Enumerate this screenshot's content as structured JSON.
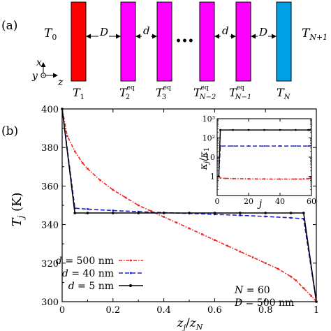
{
  "panel_a": {
    "label": "(a)",
    "t0_label": "T",
    "t0_sub": "0",
    "tn1_label": "T",
    "tn1_sub": "N+1",
    "gap_D": "D",
    "gap_d": "d",
    "dots": "•••",
    "axis_x": "x",
    "axis_y": "y",
    "axis_z": "z",
    "colors": {
      "first": "#ff0000",
      "middle": "#ff00ff",
      "last": "#00a0e6"
    },
    "slabs": [
      {
        "label": "T",
        "sub": "1",
        "sup": ""
      },
      {
        "label": "T",
        "sub": "2",
        "sup": "eq"
      },
      {
        "label": "T",
        "sub": "3",
        "sup": "eq"
      },
      {
        "label": "T",
        "sub": "N−2",
        "sup": "eq"
      },
      {
        "label": "T",
        "sub": "N−1",
        "sup": "eq"
      },
      {
        "label": "T",
        "sub": "N",
        "sup": ""
      }
    ]
  },
  "panel_b": {
    "label": "(b)"
  },
  "chart_data": [
    {
      "type": "line",
      "xlabel": "z_j / z_N",
      "ylabel": "T_j (K)",
      "xlim": [
        0,
        1
      ],
      "ylim": [
        300,
        400
      ],
      "xticks": [
        "0",
        "0.2",
        "0.4",
        "0.6",
        "0.8",
        "1"
      ],
      "yticks": [
        "300",
        "320",
        "340",
        "360",
        "380",
        "400"
      ],
      "legend": "lower-left",
      "annotation": [
        "N = 60",
        "D = 500 nm"
      ],
      "series": [
        {
          "name": "d = 500 nm",
          "color": "#ee2222",
          "style": "dash-dot",
          "x": [
            0,
            0.02,
            0.05,
            0.08,
            0.1,
            0.15,
            0.2,
            0.25,
            0.3,
            0.35,
            0.4,
            0.45,
            0.5,
            0.55,
            0.6,
            0.65,
            0.7,
            0.75,
            0.8,
            0.85,
            0.9,
            0.92,
            0.95,
            0.98,
            1.0
          ],
          "y": [
            400,
            386,
            378,
            372,
            369,
            363,
            358,
            354,
            350,
            347,
            344,
            341,
            338,
            335,
            332,
            329,
            326,
            323,
            320,
            317,
            313,
            311,
            307,
            303,
            300
          ]
        },
        {
          "name": "d = 40 nm",
          "color": "#2222cc",
          "style": "dashed",
          "x": [
            0,
            0.05,
            0.1,
            0.2,
            0.3,
            0.4,
            0.5,
            0.6,
            0.7,
            0.8,
            0.9,
            0.95,
            1.0
          ],
          "y": [
            400,
            348.5,
            348,
            347.3,
            346.7,
            346.2,
            345.8,
            345.3,
            344.8,
            344.2,
            343.5,
            343,
            300
          ]
        },
        {
          "name": "d = 5 nm",
          "color": "#000000",
          "style": "solid-dots",
          "x": [
            0,
            0.05,
            0.1,
            0.2,
            0.3,
            0.4,
            0.5,
            0.6,
            0.7,
            0.8,
            0.9,
            0.95,
            1.0
          ],
          "y": [
            400,
            346,
            346,
            346,
            346,
            346,
            346,
            346,
            346,
            346,
            346,
            346,
            300
          ]
        }
      ]
    },
    {
      "type": "line",
      "xlabel": "j",
      "ylabel": "κ_j / κ_1",
      "xlim": [
        0,
        60
      ],
      "ylim": [
        0.1,
        1000
      ],
      "yscale": "log",
      "xticks": [
        "0",
        "20",
        "40",
        "60"
      ],
      "yticks": [
        "1",
        "10",
        "10²",
        "10³"
      ],
      "series": [
        {
          "name": "d = 500 nm",
          "color": "#ee2222",
          "style": "dash-dot",
          "x": [
            1,
            2,
            5,
            10,
            20,
            30,
            40,
            50,
            55,
            58,
            59
          ],
          "y": [
            1,
            0.82,
            0.78,
            0.76,
            0.74,
            0.73,
            0.72,
            0.72,
            0.73,
            0.75,
            0.8
          ]
        },
        {
          "name": "d = 40 nm",
          "color": "#2222cc",
          "style": "dashed",
          "x": [
            1,
            2,
            10,
            20,
            30,
            40,
            50,
            58,
            59
          ],
          "y": [
            1,
            38,
            38,
            38,
            38,
            38,
            38,
            38,
            38
          ]
        },
        {
          "name": "d = 5 nm",
          "color": "#000000",
          "style": "solid-dots",
          "x": [
            1,
            2,
            10,
            20,
            30,
            40,
            50,
            58,
            59
          ],
          "y": [
            1,
            260,
            260,
            260,
            260,
            260,
            260,
            260,
            260
          ]
        }
      ]
    }
  ]
}
